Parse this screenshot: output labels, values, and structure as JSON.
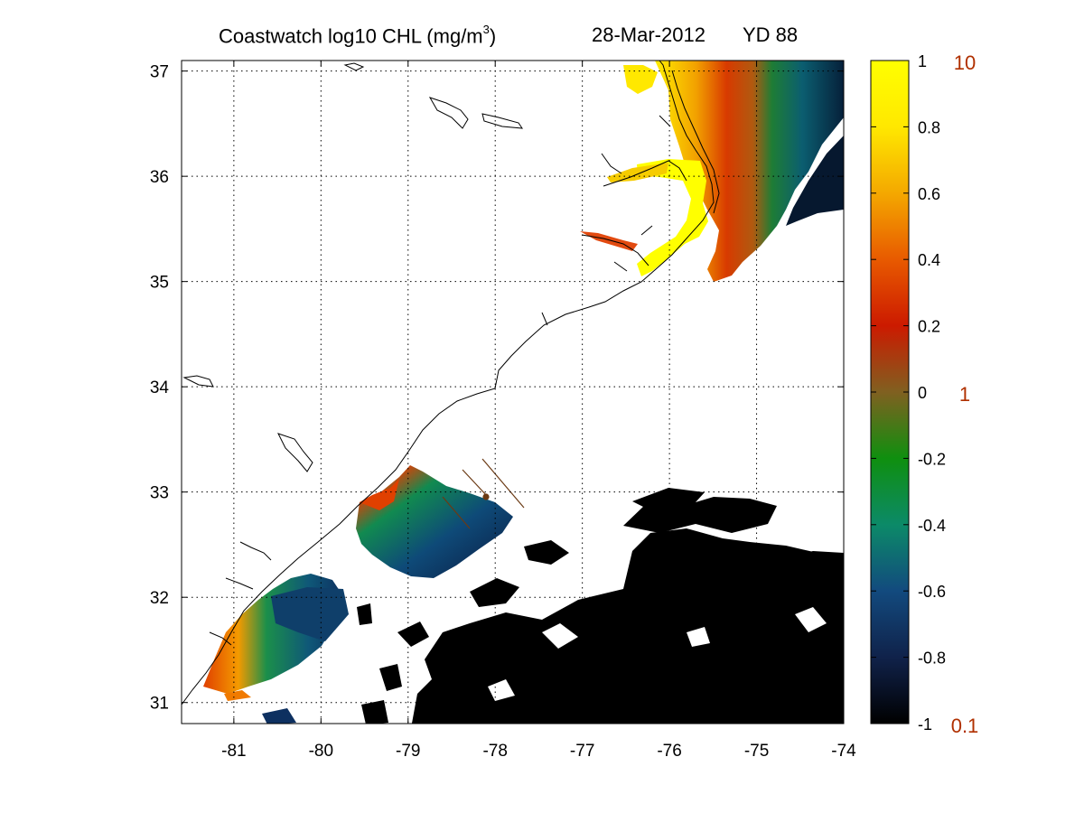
{
  "title": {
    "main_prefix": "Coastwatch  log10  CHL (mg/m",
    "main_sup": "3",
    "main_suffix": ")",
    "date": "28-Mar-2012",
    "yearday": "YD 88"
  },
  "map": {
    "lon_range": [
      -81.6,
      -74.0
    ],
    "lat_range": [
      30.8,
      37.1
    ],
    "lon_ticks": [
      "-81",
      "-80",
      "-79",
      "-78",
      "-77",
      "-76",
      "-75",
      "-74"
    ],
    "lat_ticks": [
      "37",
      "36",
      "35",
      "34",
      "33",
      "32",
      "31"
    ],
    "grid": true,
    "grid_style": "dotted"
  },
  "colorbar": {
    "range": [
      -1,
      1
    ],
    "tick_labels": [
      "1",
      "0.8",
      "0.6",
      "0.4",
      "0.2",
      "0",
      "-0.2",
      "-0.4",
      "-0.6",
      "-0.8",
      "-1"
    ],
    "secondary_labels": [
      "10",
      "1",
      "0.1"
    ],
    "secondary_label_color": "#b03000",
    "colors": [
      "#000000",
      "#10224a",
      "#124a7e",
      "#0c8a68",
      "#0f8f0f",
      "#806020",
      "#cc1a00",
      "#e85a00",
      "#f4a800",
      "#ffe800",
      "#ffff00"
    ]
  }
}
